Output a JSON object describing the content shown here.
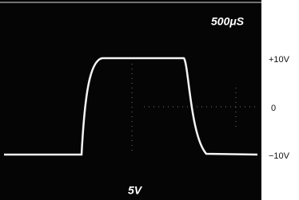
{
  "screen": {
    "timebase": "500μS",
    "volts_per_div": "5V"
  },
  "scale_labels": [
    "+10V",
    "0",
    "−10V"
  ]
}
